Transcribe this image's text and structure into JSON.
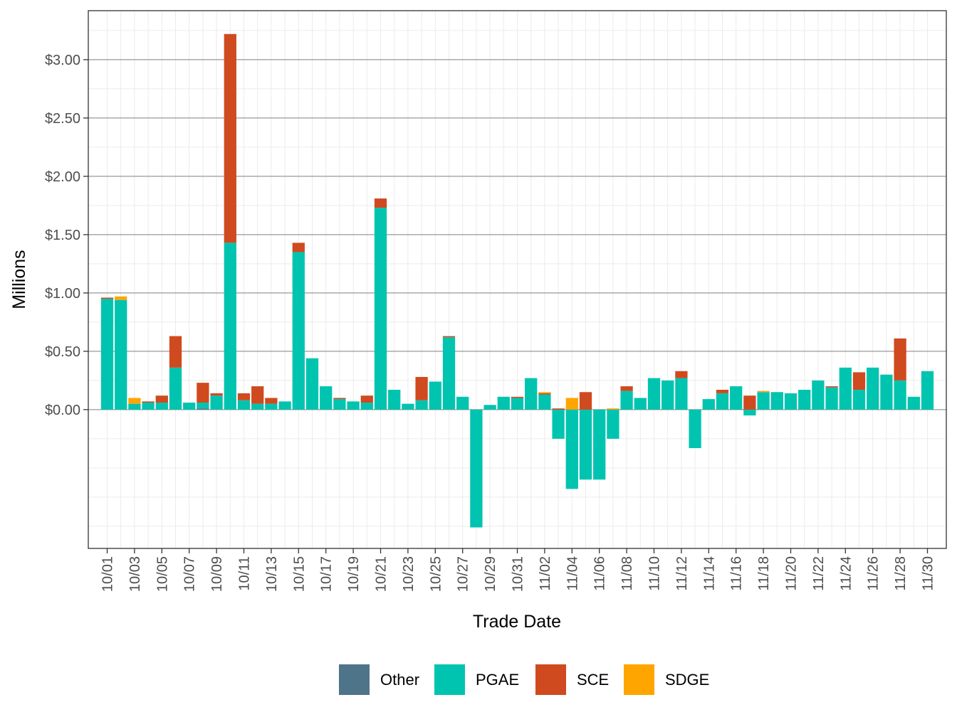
{
  "chart_data": {
    "type": "bar",
    "stacked": true,
    "xlabel": "Trade Date",
    "ylabel": "Millions",
    "ylim": [
      -1.19,
      3.42
    ],
    "y_ticks": [
      0,
      0.5,
      1,
      1.5,
      2,
      2.5,
      3
    ],
    "y_tick_labels": [
      "$0.00",
      "$0.50",
      "$1.00",
      "$1.50",
      "$2.00",
      "$2.50",
      "$3.00"
    ],
    "grid": true,
    "legend_position": "bottom",
    "categories": [
      "10/01",
      "10/02",
      "10/03",
      "10/04",
      "10/05",
      "10/06",
      "10/07",
      "10/08",
      "10/09",
      "10/10",
      "10/11",
      "10/12",
      "10/13",
      "10/14",
      "10/15",
      "10/16",
      "10/17",
      "10/18",
      "10/19",
      "10/20",
      "10/21",
      "10/22",
      "10/23",
      "10/24",
      "10/25",
      "10/26",
      "10/27",
      "10/28",
      "10/29",
      "10/30",
      "10/31",
      "11/01",
      "11/02",
      "11/03",
      "11/04",
      "11/05",
      "11/06",
      "11/07",
      "11/08",
      "11/09",
      "11/10",
      "11/11",
      "11/12",
      "11/13",
      "11/14",
      "11/15",
      "11/16",
      "11/17",
      "11/18",
      "11/19",
      "11/20",
      "11/21",
      "11/22",
      "11/23",
      "11/24",
      "11/25",
      "11/26",
      "11/27",
      "11/28",
      "11/29",
      "11/30"
    ],
    "tick_labels": [
      "10/01",
      "10/03",
      "10/05",
      "10/07",
      "10/09",
      "10/11",
      "10/13",
      "10/15",
      "10/17",
      "10/19",
      "10/21",
      "10/23",
      "10/25",
      "10/27",
      "10/29",
      "10/31",
      "11/02",
      "11/04",
      "11/06",
      "11/08",
      "11/10",
      "11/12",
      "11/14",
      "11/16",
      "11/18",
      "11/20",
      "11/22",
      "11/24",
      "11/26",
      "11/28",
      "11/30"
    ],
    "series": [
      {
        "name": "Other",
        "color": "#4e7489",
        "values": [
          0,
          0,
          0,
          0,
          0,
          0,
          0,
          0.01,
          0,
          0,
          0,
          0,
          0,
          0,
          0,
          0,
          0,
          0,
          0,
          0,
          0,
          0,
          0,
          0,
          0,
          0,
          0,
          0,
          0,
          0,
          0,
          0,
          0,
          0,
          0,
          0,
          0,
          0,
          0,
          0,
          0,
          0,
          0,
          0,
          0,
          0,
          0,
          0,
          0,
          0,
          0,
          0,
          0,
          0,
          0,
          0,
          0,
          0,
          0,
          0,
          0
        ]
      },
      {
        "name": "PGAE",
        "color": "#00c4b0",
        "values": [
          0.95,
          0.94,
          0.05,
          0.06,
          0.06,
          0.36,
          0.06,
          0.05,
          0.12,
          1.43,
          0.08,
          0.05,
          0.05,
          0.07,
          1.35,
          0.44,
          0.2,
          0.09,
          0.07,
          0.06,
          1.73,
          0.17,
          0.05,
          0.08,
          0.24,
          0.62,
          0.11,
          -1.01,
          0.04,
          0.11,
          0.1,
          0.27,
          0.13,
          -0.25,
          -0.68,
          -0.6,
          -0.6,
          -0.25,
          0.16,
          0.1,
          0.27,
          0.25,
          0.27,
          -0.33,
          0.09,
          0.14,
          0.2,
          -0.05,
          0.15,
          0.15,
          0.14,
          0.17,
          0.25,
          0.19,
          0.36,
          0.17,
          0.36,
          0.3,
          0.25,
          0.11,
          0.33
        ]
      },
      {
        "name": "SCE",
        "color": "#d04a1f",
        "values": [
          0.01,
          0,
          0,
          0.01,
          0.06,
          0.27,
          0,
          0.17,
          0.02,
          1.79,
          0.06,
          0.15,
          0.05,
          0,
          0.08,
          0,
          0,
          0.01,
          0,
          0.06,
          0.08,
          0,
          0,
          0.2,
          0,
          0.01,
          0,
          0,
          0,
          0,
          0.01,
          0,
          0.01,
          0.01,
          0,
          0.15,
          0,
          0,
          0.04,
          0,
          0,
          0,
          0.06,
          0,
          0,
          0.03,
          0,
          0.12,
          0,
          0,
          0,
          0,
          0,
          0.01,
          0,
          0.15,
          0,
          0,
          0.36,
          0,
          0
        ]
      },
      {
        "name": "SDGE",
        "color": "#ffa500",
        "values": [
          0,
          0.03,
          0.05,
          0,
          0,
          0,
          0,
          0,
          0,
          0,
          0,
          0,
          0,
          0,
          0,
          0,
          0,
          0,
          0,
          0,
          0,
          0,
          0,
          0,
          0,
          0,
          0,
          0,
          0,
          0,
          0,
          0,
          0.01,
          0,
          0.1,
          0,
          0,
          0.01,
          0,
          0,
          0,
          0,
          0,
          0,
          0,
          0,
          0,
          0,
          0.01,
          0,
          0,
          0,
          0,
          0,
          0,
          0,
          0,
          0,
          0,
          0,
          0
        ]
      }
    ]
  }
}
